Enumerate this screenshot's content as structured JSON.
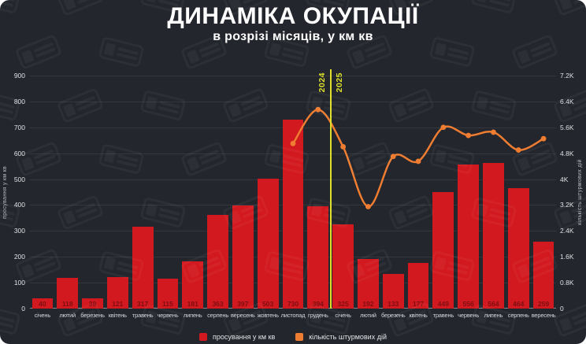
{
  "title": "ДИНАМІКА ОКУПАЦІЇ",
  "subtitle": "в розрізі місяців, у км кв",
  "year_divider": {
    "left_label": "2024",
    "right_label": "2025"
  },
  "left_axis": {
    "title": "просування у км кв",
    "ticks": [
      "900",
      "800",
      "700",
      "600",
      "500",
      "400",
      "300",
      "200",
      "100",
      "0"
    ]
  },
  "right_axis": {
    "title": "кількість штурмових дій",
    "ticks": [
      "7.2K",
      "6.4K",
      "5.6K",
      "4.8K",
      "4K",
      "3.2K",
      "2.4K",
      "1.6K",
      "0.8K",
      "0"
    ]
  },
  "legend": [
    {
      "label": "просування у км кв",
      "color": "#d2191f"
    },
    {
      "label": "кількість штурмових дій",
      "color": "#ee7d31"
    }
  ],
  "colors": {
    "background": "#23262d",
    "bar": "#d2191f",
    "bar_value_text": "#7c0f13",
    "line": "#ee7d31",
    "divider": "#dde02b",
    "grid": "rgba(255,255,255,0.08)"
  },
  "chart_data": {
    "type": "bar+line",
    "title": "ДИНАМІКА ОКУПАЦІЇ — в розрізі місяців, у км кв",
    "categories": [
      "січень",
      "лютий",
      "березень",
      "квітень",
      "травень",
      "червень",
      "липень",
      "серпень",
      "вересень",
      "жовтень",
      "листопад",
      "грудень",
      "січень",
      "лютий",
      "березень",
      "квітень",
      "травень",
      "червень",
      "липень",
      "серпень",
      "вересень"
    ],
    "series": [
      {
        "name": "просування у км кв",
        "type": "bar",
        "axis": "left",
        "color": "#d2191f",
        "values": [
          40,
          118,
          39,
          121,
          317,
          115,
          181,
          363,
          397,
          503,
          730,
          394,
          325,
          192,
          133,
          177,
          449,
          556,
          564,
          464,
          259
        ]
      },
      {
        "name": "кількість штурмових дій",
        "type": "line",
        "axis": "right",
        "color": "#ee7d31",
        "values": [
          null,
          null,
          null,
          null,
          null,
          null,
          null,
          null,
          null,
          null,
          5100,
          6150,
          5000,
          3150,
          4700,
          4550,
          5600,
          5350,
          5450,
          4900,
          5250
        ]
      }
    ],
    "left_ylim": [
      0,
      900
    ],
    "right_ylim": [
      0,
      7200
    ],
    "grid": true,
    "legend_position": "bottom",
    "divider_between_indices": [
      11,
      12
    ]
  }
}
